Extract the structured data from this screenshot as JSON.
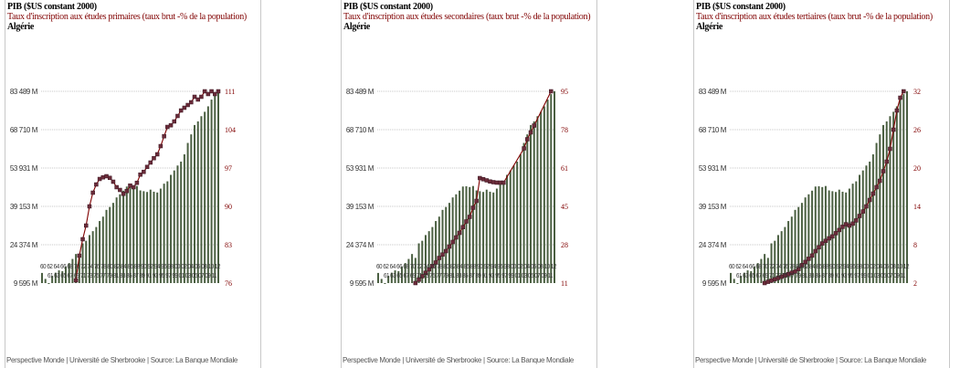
{
  "chart_data": [
    {
      "type": "bar+line",
      "title": "PIB ($US constant 2000)",
      "subtitle": "Taux d'inscription aux études primaires (taux brut -% de la population)",
      "country": "Algérie",
      "footer": "Perspective Monde | Université de Sherbrooke | Source: La Banque Mondiale",
      "left_ticks": [
        "83 489 M",
        "68 710 M",
        "53 931 M",
        "39 153 M",
        "24 374 M",
        "9 595 M"
      ],
      "right_ticks": [
        "111",
        "104",
        "97",
        "90",
        "83",
        "76"
      ],
      "x_labels_top": "60 62 64 66 68 70 72 74 76 78 80 82 84 86 88 90 92 94 96 98 00 02 04 06 08 10 12",
      "x_labels_bottom": "61 63 65 67 69 71 73 75 77 79 81 83 85 87 89 91 93 95 97 99 01 03 05 07 09 11",
      "colors": {
        "bars": "#4a5f41",
        "line": "#800000",
        "grid": "#b5b5b5"
      },
      "series": [
        {
          "name": "PIB ($US constant 2000)",
          "axis": "left",
          "x": [
            1960,
            1961,
            1962,
            1963,
            1964,
            1965,
            1966,
            1967,
            1968,
            1969,
            1970,
            1971,
            1972,
            1973,
            1974,
            1975,
            1976,
            1977,
            1978,
            1979,
            1980,
            1981,
            1982,
            1983,
            1984,
            1985,
            1986,
            1987,
            1988,
            1989,
            1990,
            1991,
            1992,
            1993,
            1994,
            1995,
            1996,
            1997,
            1998,
            1999,
            2000,
            2001,
            2002,
            2003,
            2004,
            2005,
            2006,
            2007,
            2008,
            2009,
            2010,
            2011,
            2012
          ],
          "values": [
            13500,
            11200,
            9595,
            12400,
            13600,
            14500,
            14200,
            15900,
            17300,
            18900,
            20800,
            19300,
            24900,
            25900,
            28100,
            29600,
            31200,
            33500,
            35200,
            37800,
            38900,
            40500,
            42600,
            43800,
            45200,
            46800,
            46900,
            46600,
            47000,
            45300,
            45000,
            44700,
            45600,
            44800,
            44500,
            46000,
            47900,
            48800,
            51300,
            53000,
            54900,
            56400,
            59200,
            63600,
            66900,
            70500,
            71900,
            73900,
            75600,
            77700,
            80300,
            82400,
            83489
          ]
        },
        {
          "name": "Taux d'inscription aux études primaires (taux brut -% de la population)",
          "axis": "right",
          "x": [
            1970,
            1971,
            1972,
            1973,
            1974,
            1975,
            1976,
            1977,
            1978,
            1979,
            1980,
            1981,
            1982,
            1983,
            1984,
            1985,
            1986,
            1987,
            1988,
            1989,
            1990,
            1991,
            1992,
            1993,
            1994,
            1995,
            1996,
            1997,
            1998,
            1999,
            2000,
            2001,
            2002,
            2003,
            2004,
            2005,
            2006,
            2007,
            2008,
            2009,
            2010,
            2011,
            2012
          ],
          "values": [
            76.5,
            81,
            84,
            86.5,
            90,
            92.5,
            94,
            95,
            95.3,
            95.5,
            95.2,
            94.5,
            93.5,
            93,
            92.3,
            92.8,
            93.8,
            93.5,
            94.3,
            95.8,
            96.3,
            97.2,
            98,
            98.8,
            99.5,
            101,
            102.8,
            104.5,
            104.8,
            105.5,
            106.5,
            107.5,
            108,
            108.5,
            109,
            110,
            109.5,
            110,
            111,
            110.5,
            111,
            110.5,
            111
          ]
        }
      ],
      "ylim_left": [
        9595,
        83489
      ],
      "ylim_right": [
        76,
        111
      ]
    },
    {
      "type": "bar+line",
      "title": "PIB ($US constant 2000)",
      "subtitle": "Taux d'inscription aux études secondaires (taux brut -% de la population)",
      "country": "Algérie",
      "footer": "Perspective Monde | Université de Sherbrooke | Source: La Banque Mondiale",
      "left_ticks": [
        "83 489 M",
        "68 710 M",
        "53 931 M",
        "39 153 M",
        "24 374 M",
        "9 595 M"
      ],
      "right_ticks": [
        "95",
        "78",
        "61",
        "45",
        "28",
        "11"
      ],
      "x_labels_top": "60 62 64 66 68 70 72 74 76 78 80 82 84 86 88 90 92 94 96 98 00 02 04 06 08 10 12",
      "x_labels_bottom": "61 63 65 67 69 71 73 75 77 79 81 83 85 87 89 91 93 95 97 99 01 03 05 07 09 11",
      "colors": {
        "bars": "#4a5f41",
        "line": "#800000",
        "grid": "#b5b5b5"
      },
      "series": [
        {
          "name": "PIB ($US constant 2000)",
          "axis": "left",
          "x": [
            1960,
            1961,
            1962,
            1963,
            1964,
            1965,
            1966,
            1967,
            1968,
            1969,
            1970,
            1971,
            1972,
            1973,
            1974,
            1975,
            1976,
            1977,
            1978,
            1979,
            1980,
            1981,
            1982,
            1983,
            1984,
            1985,
            1986,
            1987,
            1988,
            1989,
            1990,
            1991,
            1992,
            1993,
            1994,
            1995,
            1996,
            1997,
            1998,
            1999,
            2000,
            2001,
            2002,
            2003,
            2004,
            2005,
            2006,
            2007,
            2008,
            2009,
            2010,
            2011,
            2012
          ],
          "values": [
            13500,
            11200,
            9595,
            12400,
            13600,
            14500,
            14200,
            15900,
            17300,
            18900,
            20800,
            19300,
            24900,
            25900,
            28100,
            29600,
            31200,
            33500,
            35200,
            37800,
            38900,
            40500,
            42600,
            43800,
            45200,
            46800,
            46900,
            46600,
            47000,
            45300,
            45000,
            44700,
            45600,
            44800,
            44500,
            46000,
            47900,
            48800,
            51300,
            53000,
            54900,
            56400,
            59200,
            63600,
            66900,
            70500,
            71900,
            73900,
            75600,
            77700,
            80300,
            82400,
            83489
          ]
        },
        {
          "name": "Taux d'inscription aux études secondaires (taux brut -% de la population)",
          "axis": "right",
          "x": [
            1971,
            1972,
            1973,
            1974,
            1975,
            1976,
            1977,
            1978,
            1979,
            1980,
            1981,
            1982,
            1983,
            1984,
            1985,
            1986,
            1987,
            1988,
            1989,
            1990,
            1991,
            1992,
            1993,
            1994,
            1995,
            1996,
            1997,
            2003,
            2004,
            2005,
            2006,
            2011
          ],
          "values": [
            11,
            12.5,
            14,
            15.5,
            17,
            18.5,
            20,
            22,
            23.5,
            25,
            27,
            29,
            31,
            33,
            35.5,
            38,
            40,
            44,
            47,
            57,
            56.5,
            56,
            55.5,
            55.2,
            55,
            55,
            55,
            70,
            74,
            77,
            80,
            95
          ]
        }
      ],
      "ylim_left": [
        9595,
        83489
      ],
      "ylim_right": [
        11,
        95
      ]
    },
    {
      "type": "bar+line",
      "title": "PIB ($US constant 2000)",
      "subtitle": "Taux d'inscription aux études tertiaires (taux brut -% de la population)",
      "country": "Algérie",
      "footer": "Perspective Monde | Université de Sherbrooke | Source: La Banque Mondiale",
      "left_ticks": [
        "83 489 M",
        "68 710 M",
        "53 931 M",
        "39 153 M",
        "24 374 M",
        "9 595 M"
      ],
      "right_ticks": [
        "32",
        "26",
        "20",
        "14",
        "8",
        "2"
      ],
      "x_labels_top": "60 62 64 66 68 70 72 74 76 78 80 82 84 86 88 90 92 94 96 98 00 02 04 06 08 10 12",
      "x_labels_bottom": "61 63 65 67 69 71 73 75 77 79 81 83 85 87 89 91 93 95 97 99 01 03 05 07 09 11",
      "colors": {
        "bars": "#4a5f41",
        "line": "#800000",
        "grid": "#b5b5b5"
      },
      "series": [
        {
          "name": "PIB ($US constant 2000)",
          "axis": "left",
          "x": [
            1960,
            1961,
            1962,
            1963,
            1964,
            1965,
            1966,
            1967,
            1968,
            1969,
            1970,
            1971,
            1972,
            1973,
            1974,
            1975,
            1976,
            1977,
            1978,
            1979,
            1980,
            1981,
            1982,
            1983,
            1984,
            1985,
            1986,
            1987,
            1988,
            1989,
            1990,
            1991,
            1992,
            1993,
            1994,
            1995,
            1996,
            1997,
            1998,
            1999,
            2000,
            2001,
            2002,
            2003,
            2004,
            2005,
            2006,
            2007,
            2008,
            2009,
            2010,
            2011,
            2012
          ],
          "values": [
            13500,
            11200,
            9595,
            12400,
            13600,
            14500,
            14200,
            15900,
            17300,
            18900,
            20800,
            19300,
            24900,
            25900,
            28100,
            29600,
            31200,
            33500,
            35200,
            37800,
            38900,
            40500,
            42600,
            43800,
            45200,
            46800,
            46900,
            46600,
            47000,
            45300,
            45000,
            44700,
            45600,
            44800,
            44500,
            46000,
            47900,
            48800,
            51300,
            53000,
            54900,
            56400,
            59200,
            63600,
            66900,
            70500,
            71900,
            73900,
            75600,
            77700,
            80300,
            82400,
            83489
          ]
        },
        {
          "name": "Taux d'inscription aux études tertiaires (taux brut -% de la population)",
          "axis": "right",
          "x": [
            1970,
            1971,
            1972,
            1973,
            1974,
            1975,
            1976,
            1977,
            1978,
            1979,
            1980,
            1981,
            1982,
            1983,
            1984,
            1985,
            1986,
            1987,
            1988,
            1989,
            1990,
            1991,
            1992,
            1993,
            1994,
            1995,
            1996,
            1997,
            1998,
            1999,
            2000,
            2001,
            2002,
            2003,
            2004,
            2005,
            2006,
            2007,
            2008,
            2009,
            2010,
            2011
          ],
          "values": [
            2,
            2.2,
            2.4,
            2.6,
            2.8,
            3.0,
            3.2,
            3.4,
            3.6,
            3.8,
            4.2,
            4.8,
            5.3,
            5.8,
            6.3,
            7.0,
            7.6,
            8.2,
            8.6,
            9.0,
            9.3,
            9.8,
            10.3,
            10.8,
            11.2,
            11.0,
            11.3,
            11.8,
            12.5,
            13.2,
            14.0,
            15.0,
            16.0,
            17.0,
            18.0,
            19.5,
            21.0,
            23.0,
            26.0,
            29.0,
            31.0,
            32.0
          ]
        }
      ],
      "ylim_left": [
        9595,
        83489
      ],
      "ylim_right": [
        2,
        32
      ]
    }
  ]
}
